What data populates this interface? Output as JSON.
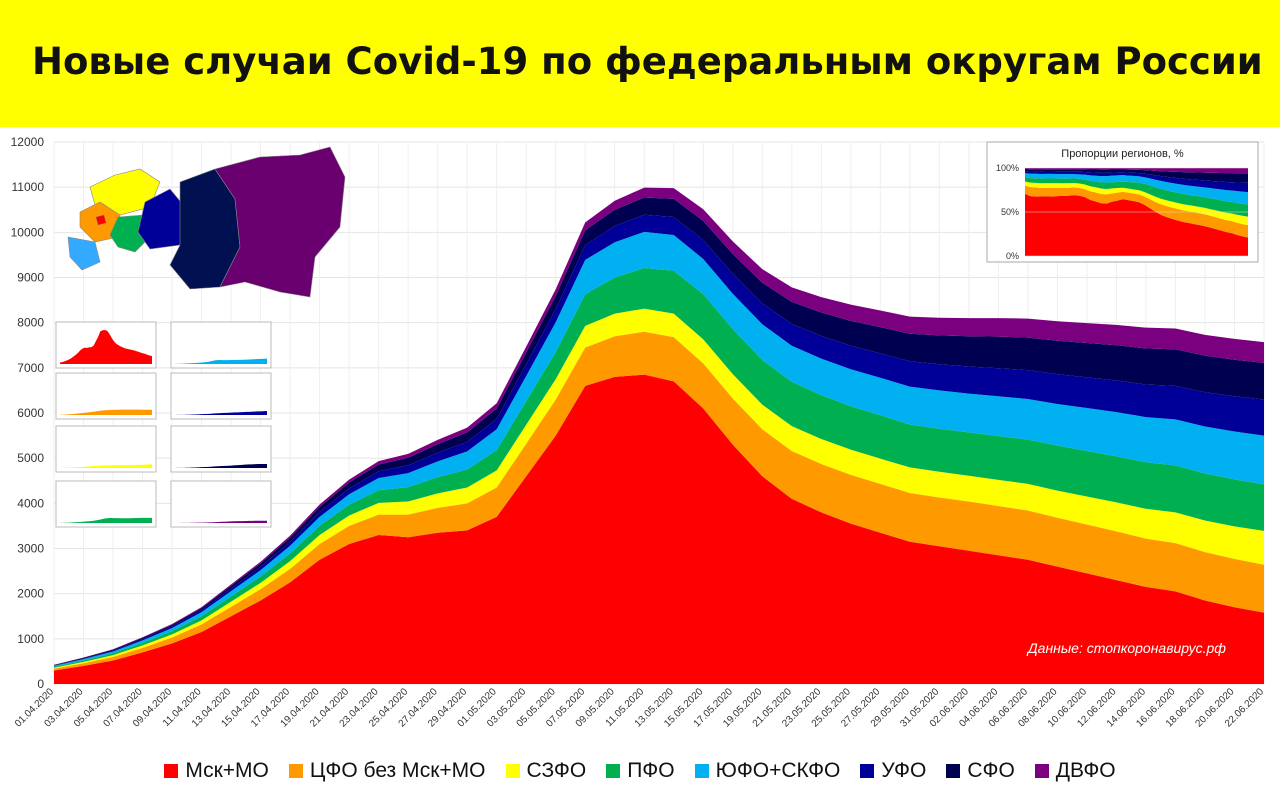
{
  "title": "Новые случаи Covid-19 по федеральным округам России",
  "chart_data": {
    "type": "area",
    "stacked": true,
    "x": [
      "01.04.2020",
      "03.04.2020",
      "05.04.2020",
      "07.04.2020",
      "09.04.2020",
      "11.04.2020",
      "13.04.2020",
      "15.04.2020",
      "17.04.2020",
      "19.04.2020",
      "21.04.2020",
      "23.04.2020",
      "25.04.2020",
      "27.04.2020",
      "29.04.2020",
      "01.05.2020",
      "03.05.2020",
      "05.05.2020",
      "07.05.2020",
      "09.05.2020",
      "11.05.2020",
      "13.05.2020",
      "15.05.2020",
      "17.05.2020",
      "19.05.2020",
      "21.05.2020",
      "23.05.2020",
      "25.05.2020",
      "27.05.2020",
      "29.05.2020",
      "31.05.2020",
      "02.06.2020",
      "04.06.2020",
      "06.06.2020",
      "08.06.2020",
      "10.06.2020",
      "12.06.2020",
      "14.06.2020",
      "16.06.2020",
      "18.06.2020",
      "20.06.2020",
      "22.06.2020"
    ],
    "series": [
      {
        "name": "Мск+МО",
        "color": "#ff0000",
        "values": [
          300,
          400,
          520,
          700,
          900,
          1150,
          1500,
          1850,
          2250,
          2750,
          3100,
          3300,
          3250,
          3350,
          3400,
          3700,
          4600,
          5500,
          6600,
          6800,
          6850,
          6700,
          6100,
          5300,
          4600,
          4100,
          3800,
          3550,
          3350,
          3150,
          3050,
          2950,
          2850,
          2750,
          2600,
          2450,
          2300,
          2150,
          2050,
          1850,
          1700,
          1580
        ]
      },
      {
        "name": "ЦФО без Мск+МО",
        "color": "#ff9900",
        "values": [
          40,
          60,
          80,
          100,
          130,
          170,
          210,
          250,
          300,
          350,
          400,
          450,
          500,
          550,
          600,
          650,
          720,
          800,
          850,
          900,
          950,
          980,
          1000,
          1020,
          1040,
          1060,
          1070,
          1080,
          1080,
          1080,
          1080,
          1090,
          1090,
          1090,
          1080,
          1080,
          1080,
          1070,
          1070,
          1070,
          1070,
          1060
        ]
      },
      {
        "name": "СЗФО",
        "color": "#ffff00",
        "values": [
          20,
          30,
          40,
          55,
          70,
          90,
          115,
          140,
          170,
          200,
          230,
          260,
          290,
          320,
          350,
          380,
          420,
          450,
          480,
          500,
          510,
          520,
          530,
          540,
          545,
          550,
          555,
          560,
          560,
          565,
          570,
          570,
          580,
          590,
          600,
          620,
          640,
          660,
          680,
          700,
          720,
          750
        ]
      },
      {
        "name": "ПФО",
        "color": "#00b050",
        "values": [
          20,
          30,
          40,
          55,
          70,
          90,
          115,
          140,
          170,
          200,
          240,
          280,
          320,
          360,
          400,
          450,
          520,
          600,
          700,
          800,
          900,
          950,
          1000,
          1000,
          990,
          980,
          970,
          960,
          960,
          950,
          950,
          960,
          970,
          980,
          1000,
          1010,
          1020,
          1030,
          1040,
          1040,
          1040,
          1030
        ]
      },
      {
        "name": "ЮФО+СКФО",
        "color": "#00b0f0",
        "values": [
          20,
          30,
          40,
          55,
          70,
          90,
          115,
          140,
          170,
          200,
          230,
          270,
          310,
          350,
          400,
          460,
          560,
          660,
          760,
          780,
          800,
          790,
          780,
          780,
          790,
          800,
          810,
          820,
          830,
          840,
          850,
          860,
          880,
          900,
          920,
          950,
          980,
          1000,
          1020,
          1040,
          1060,
          1080
        ]
      },
      {
        "name": "УФО",
        "color": "#000099",
        "values": [
          10,
          15,
          20,
          28,
          35,
          45,
          60,
          75,
          90,
          110,
          130,
          150,
          170,
          190,
          210,
          230,
          260,
          290,
          330,
          360,
          380,
          400,
          420,
          440,
          460,
          480,
          500,
          520,
          540,
          560,
          580,
          600,
          620,
          640,
          660,
          680,
          700,
          720,
          740,
          760,
          780,
          800
        ]
      },
      {
        "name": "СФО",
        "color": "#000050",
        "values": [
          10,
          15,
          20,
          28,
          35,
          45,
          60,
          75,
          90,
          110,
          130,
          150,
          170,
          190,
          210,
          230,
          260,
          290,
          330,
          360,
          380,
          400,
          420,
          440,
          460,
          490,
          520,
          550,
          580,
          610,
          640,
          670,
          700,
          720,
          740,
          760,
          780,
          800,
          810,
          810,
          810,
          810
        ]
      },
      {
        "name": "ДВФО",
        "color": "#7b0080",
        "values": [
          5,
          8,
          10,
          14,
          18,
          23,
          30,
          38,
          45,
          55,
          65,
          75,
          85,
          95,
          105,
          115,
          130,
          150,
          170,
          200,
          220,
          240,
          260,
          280,
          300,
          320,
          340,
          360,
          370,
          380,
          390,
          400,
          410,
          420,
          430,
          440,
          450,
          460,
          460,
          460,
          460,
          460
        ]
      }
    ],
    "ylim": [
      0,
      12000
    ],
    "yticks": [
      "0",
      "1000",
      "2000",
      "3000",
      "4000",
      "5000",
      "6000",
      "7000",
      "8000",
      "9000",
      "10000",
      "11000",
      "12000"
    ],
    "grid": true,
    "legend_position": "bottom",
    "annotation": "Данные: стопкоронавирус.рф",
    "inset": {
      "title": "Пропорции регионов, %",
      "yticks": [
        "0%",
        "50%",
        "100%"
      ]
    }
  }
}
